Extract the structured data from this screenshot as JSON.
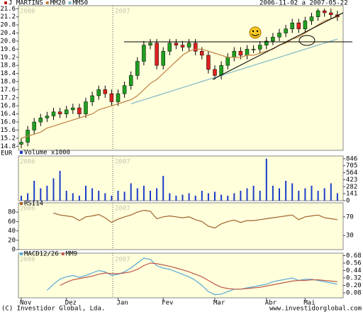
{
  "chart_data": [
    {
      "type": "candlestick",
      "title": "J MARTINS",
      "date_range": "2006-11-02 a 2007-05-22",
      "y_unit": "EUR",
      "year_labels": [
        "2006",
        "2007"
      ],
      "categories": [
        "Nov",
        null,
        null,
        null,
        null,
        null,
        null,
        "Dez",
        null,
        null,
        null,
        null,
        null,
        null,
        null,
        "Jan",
        null,
        null,
        null,
        null,
        null,
        null,
        "Fev",
        null,
        null,
        null,
        null,
        null,
        null,
        null,
        "Mar",
        null,
        null,
        null,
        null,
        null,
        null,
        null,
        "Abr",
        null,
        null,
        null,
        null,
        null,
        "Mai",
        null,
        null,
        null,
        null,
        null
      ],
      "open": [
        14.9,
        15.0,
        15.6,
        16.0,
        16.2,
        16.3,
        16.5,
        16.4,
        16.6,
        16.7,
        16.4,
        17.0,
        17.3,
        17.6,
        17.4,
        17.0,
        17.4,
        17.8,
        18.3,
        19.0,
        19.8,
        19.9,
        18.8,
        19.5,
        19.9,
        19.8,
        19.7,
        19.9,
        19.5,
        19.3,
        18.6,
        18.3,
        18.8,
        19.2,
        19.5,
        19.3,
        19.6,
        19.6,
        19.8,
        20.0,
        20.2,
        20.4,
        20.6,
        20.9,
        20.6,
        21.0,
        21.2,
        21.5,
        21.4,
        21.3
      ],
      "high": [
        15.2,
        15.8,
        16.2,
        16.4,
        16.5,
        16.7,
        16.7,
        16.8,
        16.9,
        16.9,
        17.2,
        17.5,
        17.8,
        17.8,
        17.6,
        17.6,
        18.0,
        18.5,
        19.2,
        20.0,
        20.1,
        20.1,
        19.7,
        20.1,
        20.1,
        20.0,
        20.1,
        20.1,
        19.7,
        19.5,
        18.8,
        19.0,
        19.4,
        19.7,
        19.7,
        19.8,
        19.8,
        20.0,
        20.2,
        20.4,
        20.6,
        20.8,
        21.1,
        21.1,
        21.2,
        21.4,
        21.6,
        21.6,
        21.6,
        21.5
      ],
      "low": [
        14.7,
        14.8,
        15.4,
        15.8,
        16.0,
        16.1,
        16.2,
        16.2,
        16.4,
        16.2,
        16.2,
        16.8,
        17.1,
        17.2,
        16.8,
        16.8,
        17.2,
        17.6,
        18.1,
        18.8,
        19.6,
        18.6,
        18.6,
        19.3,
        19.6,
        19.5,
        19.5,
        19.3,
        19.1,
        18.4,
        18.1,
        18.1,
        18.6,
        19.0,
        19.1,
        19.1,
        19.4,
        19.4,
        19.6,
        19.8,
        20.0,
        20.2,
        20.4,
        20.4,
        20.4,
        20.8,
        21.0,
        21.2,
        21.1,
        21.0
      ],
      "close": [
        15.0,
        15.6,
        16.0,
        16.2,
        16.3,
        16.5,
        16.4,
        16.6,
        16.7,
        16.4,
        17.0,
        17.3,
        17.6,
        17.4,
        17.0,
        17.4,
        17.8,
        18.3,
        19.0,
        19.8,
        19.9,
        18.8,
        19.5,
        19.9,
        19.8,
        19.7,
        19.9,
        19.5,
        19.3,
        18.6,
        18.3,
        18.8,
        19.2,
        19.5,
        19.3,
        19.6,
        19.6,
        19.8,
        20.0,
        20.2,
        20.4,
        20.6,
        20.9,
        20.6,
        21.0,
        21.2,
        21.5,
        21.4,
        21.3,
        21.2
      ],
      "up_color": "#20a020",
      "down_color": "#e02020",
      "title_color": "#c02020",
      "series": [
        {
          "name": "MM20",
          "color": "#c08040",
          "values": [
            15.2,
            15.3,
            15.4,
            15.5,
            15.7,
            15.8,
            15.9,
            16.0,
            16.1,
            16.2,
            16.3,
            16.4,
            16.6,
            16.7,
            16.8,
            16.9,
            17.0,
            17.1,
            17.3,
            17.6,
            17.9,
            18.1,
            18.4,
            18.7,
            19.0,
            19.3,
            19.5,
            19.6,
            19.6,
            19.5,
            19.4,
            19.3,
            19.2,
            19.2,
            19.2,
            19.3,
            19.3,
            19.4,
            19.5,
            19.6,
            19.8,
            19.9,
            20.1,
            20.2,
            20.4,
            20.6,
            20.8,
            21.0,
            21.1,
            21.2
          ]
        },
        {
          "name": "MM50",
          "color": "#80b8c8",
          "values": [
            null,
            null,
            null,
            null,
            null,
            null,
            null,
            null,
            null,
            null,
            null,
            null,
            null,
            null,
            null,
            null,
            null,
            16.9,
            17.0,
            17.1,
            17.2,
            17.3,
            17.4,
            17.5,
            17.6,
            17.7,
            17.8,
            17.9,
            18.0,
            18.1,
            18.2,
            18.3,
            18.4,
            18.5,
            18.6,
            18.7,
            18.8,
            18.9,
            19.0,
            19.1,
            19.2,
            19.3,
            19.4,
            19.5,
            19.6,
            19.7,
            19.8,
            19.9,
            20.0,
            20.1
          ]
        }
      ],
      "ylim": [
        14.6,
        21.75
      ],
      "yticks": [
        14.8,
        15.2,
        15.6,
        {
          "value": 16,
          "label": "16.0"
        },
        16.4,
        16.8,
        17.2,
        17.6,
        {
          "value": 18,
          "label": "18.0"
        },
        18.4,
        18.8,
        19.2,
        19.6,
        {
          "value": 20,
          "label": "20.0"
        },
        20.4,
        20.8,
        21.2,
        21.6
      ]
    },
    {
      "type": "bar",
      "title": "Volume x1000",
      "color": "#1c3cc8",
      "values": [
        100,
        150,
        400,
        250,
        300,
        450,
        600,
        200,
        150,
        100,
        300,
        250,
        200,
        150,
        100,
        200,
        180,
        350,
        250,
        300,
        200,
        250,
        500,
        150,
        100,
        120,
        150,
        100,
        200,
        150,
        180,
        120,
        100,
        150,
        200,
        250,
        300,
        200,
        846,
        300,
        250,
        400,
        350,
        200,
        250,
        300,
        200,
        250,
        350,
        150
      ],
      "ylim": [
        0,
        900
      ],
      "yticks": [
        0,
        141,
        282,
        423,
        564,
        705,
        846
      ],
      "axis_side": "right"
    },
    {
      "type": "line",
      "series": [
        {
          "name": "RSI14",
          "color": "#a0622a",
          "values": [
            null,
            null,
            null,
            null,
            null,
            78,
            74,
            72,
            70,
            62,
            70,
            72,
            75,
            68,
            58,
            65,
            70,
            74,
            80,
            84,
            82,
            66,
            70,
            72,
            70,
            68,
            70,
            64,
            60,
            50,
            46,
            55,
            60,
            63,
            58,
            62,
            62,
            64,
            66,
            68,
            70,
            72,
            74,
            64,
            70,
            72,
            74,
            68,
            66,
            64
          ]
        }
      ],
      "ylim": [
        0,
        100
      ],
      "yticks": [
        0,
        20,
        40,
        60,
        80
      ],
      "axis_side": "left",
      "y2lim": [
        0,
        100
      ],
      "y2ticks": [
        30,
        70
      ]
    },
    {
      "type": "line",
      "series": [
        {
          "name": "MACD12/26",
          "color": "#58a8d8",
          "values": [
            null,
            null,
            null,
            null,
            0.12,
            0.22,
            0.3,
            0.34,
            0.36,
            0.33,
            0.36,
            0.4,
            0.44,
            0.42,
            0.36,
            0.38,
            0.42,
            0.48,
            0.56,
            0.64,
            0.62,
            0.52,
            0.48,
            0.46,
            0.42,
            0.38,
            0.34,
            0.28,
            0.2,
            0.1,
            0.05,
            0.06,
            0.1,
            0.14,
            0.14,
            0.16,
            0.18,
            0.2,
            0.22,
            0.26,
            0.28,
            0.3,
            0.32,
            0.28,
            0.3,
            0.3,
            0.28,
            0.26,
            0.24,
            0.22
          ]
        },
        {
          "name": "MM9",
          "color": "#c05a4a",
          "values": [
            null,
            null,
            null,
            null,
            null,
            null,
            0.2,
            0.25,
            0.29,
            0.31,
            0.33,
            0.35,
            0.38,
            0.4,
            0.39,
            0.39,
            0.4,
            0.42,
            0.46,
            0.52,
            0.56,
            0.55,
            0.53,
            0.51,
            0.48,
            0.45,
            0.42,
            0.38,
            0.34,
            0.28,
            0.22,
            0.17,
            0.15,
            0.14,
            0.14,
            0.15,
            0.16,
            0.17,
            0.19,
            0.21,
            0.23,
            0.25,
            0.27,
            0.28,
            0.28,
            0.29,
            0.29,
            0.28,
            0.27,
            0.26
          ]
        }
      ],
      "ylim": [
        0,
        0.72
      ],
      "yticks": [
        0.08,
        {
          "value": 0.2,
          "label": "0.20"
        },
        0.32,
        0.44,
        0.56,
        0.68
      ],
      "axis_side": "right"
    }
  ],
  "footer": {
    "left": "(C) Investidor Global, Lda.",
    "right": "www.investidorglobal.com"
  }
}
